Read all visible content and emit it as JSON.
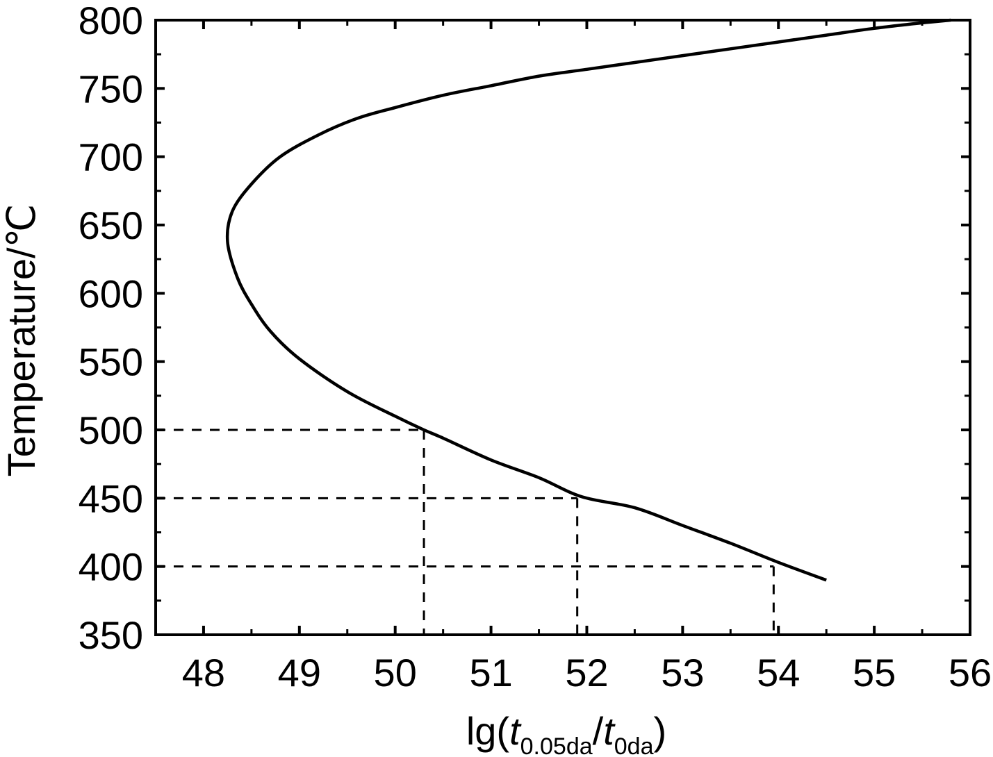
{
  "chart_data": {
    "type": "line",
    "title": "",
    "xlabel": "lg(t0.05da/t0da)",
    "xlabel_parts": {
      "prefix": "lg(",
      "t1": "t",
      "sub1": "0.05da",
      "slash": "/",
      "t2": "t",
      "sub2": "0da",
      "suffix": ")"
    },
    "ylabel": "Temperature/℃",
    "xlim": [
      47.5,
      56
    ],
    "ylim": [
      350,
      800
    ],
    "xticks": [
      "48",
      "49",
      "50",
      "51",
      "52",
      "53",
      "54",
      "55",
      "56"
    ],
    "yticks": [
      "350",
      "400",
      "450",
      "500",
      "550",
      "600",
      "650",
      "700",
      "750",
      "800"
    ],
    "grid": false,
    "series": [
      {
        "color": "#000000",
        "style": "solid",
        "points": [
          [
            54.5,
            390
          ],
          [
            54.0,
            403
          ],
          [
            53.5,
            417
          ],
          [
            53.0,
            430
          ],
          [
            52.5,
            443
          ],
          [
            51.95,
            451
          ],
          [
            51.5,
            465
          ],
          [
            51.0,
            478
          ],
          [
            50.5,
            494
          ],
          [
            50.3,
            500
          ],
          [
            50.0,
            510
          ],
          [
            49.5,
            528
          ],
          [
            49.0,
            552
          ],
          [
            48.7,
            572
          ],
          [
            48.5,
            592
          ],
          [
            48.35,
            612
          ],
          [
            48.25,
            638
          ],
          [
            48.3,
            660
          ],
          [
            48.5,
            680
          ],
          [
            48.8,
            700
          ],
          [
            49.2,
            716
          ],
          [
            49.6,
            728
          ],
          [
            50.0,
            736
          ],
          [
            50.5,
            745
          ],
          [
            51.0,
            752
          ],
          [
            51.5,
            759
          ],
          [
            52.0,
            764
          ],
          [
            52.5,
            769
          ],
          [
            53.0,
            774
          ],
          [
            53.5,
            779
          ],
          [
            54.0,
            784
          ],
          [
            54.5,
            789
          ],
          [
            55.0,
            794
          ],
          [
            55.5,
            798
          ],
          [
            55.8,
            800
          ]
        ]
      }
    ],
    "reference_lines": [
      {
        "y": 500,
        "x": 50.3,
        "style": "dashed"
      },
      {
        "y": 450,
        "x": 51.9,
        "style": "dashed"
      },
      {
        "y": 400,
        "x": 53.95,
        "style": "dashed"
      }
    ]
  }
}
